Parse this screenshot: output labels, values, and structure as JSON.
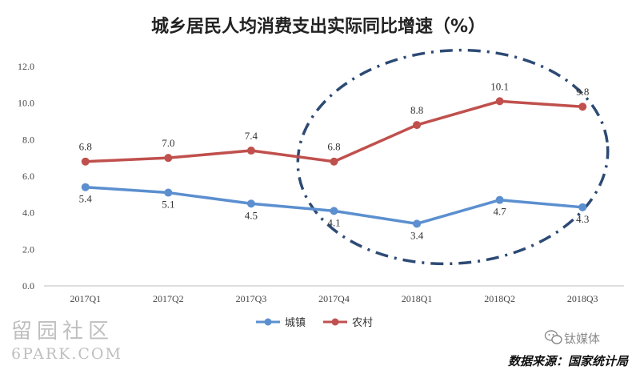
{
  "chart_data": {
    "type": "line",
    "title": "城乡居民人均消费支出实际同比增速（%）",
    "categories": [
      "2017Q1",
      "2017Q2",
      "2017Q3",
      "2017Q4",
      "2018Q1",
      "2018Q2",
      "2018Q3"
    ],
    "ylim": [
      0,
      12
    ],
    "yticks": [
      "0.0",
      "2.0",
      "4.0",
      "6.0",
      "8.0",
      "10.0",
      "12.0"
    ],
    "grid": false,
    "legend_position": "bottom",
    "series": [
      {
        "name": "城镇",
        "color": "#5b8fcf",
        "values": [
          5.4,
          5.1,
          4.5,
          4.1,
          3.4,
          4.7,
          4.3
        ],
        "labels": [
          "5.4",
          "5.1",
          "4.5",
          "4.1",
          "3.4",
          "4.7",
          "4.3"
        ]
      },
      {
        "name": "农村",
        "color": "#c0504d",
        "values": [
          6.8,
          7.0,
          7.4,
          6.8,
          8.8,
          10.1,
          9.8
        ],
        "labels": [
          "6.8",
          "7.0",
          "7.4",
          "6.8",
          "8.8",
          "10.1",
          "9.8"
        ]
      }
    ],
    "annotation": {
      "shape": "dash-dot ellipse",
      "color": "#2d4a75",
      "highlights": [
        "2017Q4",
        "2018Q1",
        "2018Q2",
        "2018Q3"
      ]
    },
    "source": "数据来源：国家统计局"
  },
  "watermark": {
    "top": "留园社区",
    "bottom": "6PARK.COM"
  },
  "brand_label": "钛媒体",
  "brand_icon": "wechat-icon"
}
